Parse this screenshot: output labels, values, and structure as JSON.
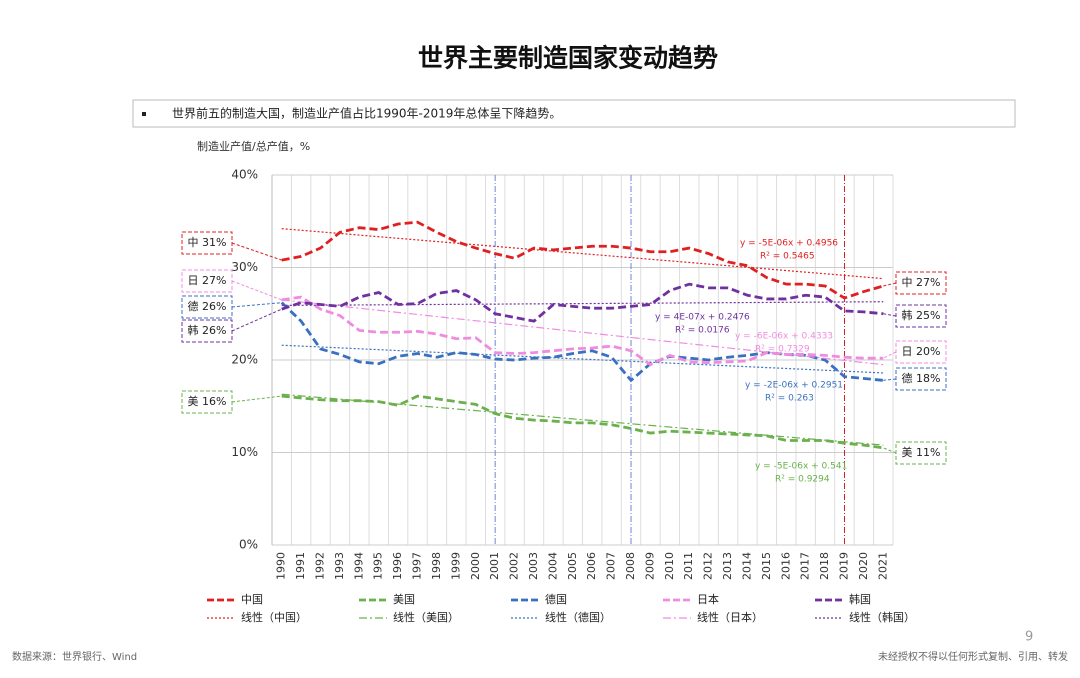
{
  "title": "世界主要制造国家变动趋势",
  "bullet": "世界前五的制造大国，制造业产值占比1990年-2019年总体呈下降趋势。",
  "footer": {
    "source": "数据来源：世界银行、Wind",
    "page": "9",
    "notice": "未经授权不得以任何形式复制、引用、转发"
  },
  "chart_data": {
    "type": "line",
    "y_label": "制造业产值/总产值，%",
    "categories": [
      "1990",
      "1991",
      "1992",
      "1993",
      "1994",
      "1995",
      "1996",
      "1997",
      "1998",
      "1999",
      "2000",
      "2001",
      "2002",
      "2003",
      "2004",
      "2005",
      "2006",
      "2007",
      "2008",
      "2009",
      "2010",
      "2011",
      "2012",
      "2013",
      "2014",
      "2015",
      "2016",
      "2017",
      "2018",
      "2019",
      "2020",
      "2021"
    ],
    "ylim": [
      0,
      40
    ],
    "yticks": [
      {
        "value": 0,
        "label": "0%"
      },
      {
        "value": 10,
        "label": "10%"
      },
      {
        "value": 20,
        "label": "20%"
      },
      {
        "value": 30,
        "label": "30%"
      },
      {
        "value": 40,
        "label": "40%"
      }
    ],
    "grid": true,
    "vlines": [
      {
        "x": "2001",
        "color": "#6f86d8"
      },
      {
        "x": "2008",
        "color": "#6f86d8"
      },
      {
        "x": "2019",
        "color": "#d02020"
      }
    ],
    "series": [
      {
        "name": "中国",
        "color": "#e02020",
        "start_label": "中 31%",
        "end_label": "中 27%",
        "values": [
          30.8,
          31.2,
          32.1,
          33.8,
          34.3,
          34.1,
          34.7,
          34.9,
          33.8,
          32.8,
          32.1,
          31.5,
          31.0,
          32.1,
          31.9,
          32.1,
          32.3,
          32.3,
          32.1,
          31.7,
          31.7,
          32.1,
          31.5,
          30.6,
          30.2,
          28.9,
          28.2,
          28.2,
          28.0,
          26.7,
          27.4,
          28.0
        ],
        "trend": {
          "name": "线性（中国）",
          "values": [
            34.2,
            28.8
          ],
          "equation": "y = -5E-06x + 0.4956",
          "r2": "R² = 0.5465"
        }
      },
      {
        "name": "美国",
        "color": "#6ab04c",
        "start_label": "美 16%",
        "end_label": "美 11%",
        "values": [
          16.1,
          15.9,
          15.7,
          15.6,
          15.6,
          15.5,
          15.1,
          16.1,
          15.8,
          15.5,
          15.2,
          14.2,
          13.7,
          13.5,
          13.4,
          13.2,
          13.2,
          13.0,
          12.6,
          12.1,
          12.3,
          12.2,
          12.1,
          12.0,
          11.9,
          11.8,
          11.3,
          11.3,
          11.3,
          11.0,
          10.8,
          10.5
        ],
        "trend": {
          "name": "线性（美国）",
          "values": [
            16.3,
            10.8
          ],
          "equation": "y = -5E-06x + 0.541",
          "r2": "R² = 0.9294"
        }
      },
      {
        "name": "德国",
        "color": "#3a70c0",
        "start_label": "德 26%",
        "end_label": "德 18%",
        "values": [
          26.2,
          24.2,
          21.2,
          20.6,
          19.8,
          19.6,
          20.4,
          20.7,
          20.3,
          20.8,
          20.6,
          20.1,
          20.0,
          20.2,
          20.3,
          20.7,
          21.0,
          20.3,
          17.8,
          19.6,
          20.4,
          20.2,
          20.0,
          20.3,
          20.5,
          20.8,
          20.6,
          20.5,
          20.0,
          18.2,
          18.0,
          17.8
        ],
        "trend": {
          "name": "线性（德国）",
          "values": [
            21.6,
            18.6
          ],
          "equation": "y = -2E-06x + 0.2951",
          "r2": "R² = 0.263"
        }
      },
      {
        "name": "日本",
        "color": "#f08ce0",
        "start_label": "日 27%",
        "end_label": "日 20%",
        "values": [
          26.5,
          26.8,
          25.5,
          24.8,
          23.2,
          23.0,
          23.0,
          23.1,
          22.8,
          22.3,
          22.4,
          20.8,
          20.7,
          20.8,
          21.0,
          21.2,
          21.3,
          21.5,
          21.0,
          19.5,
          20.5,
          19.8,
          19.7,
          19.8,
          19.9,
          20.8,
          20.6,
          20.6,
          20.5,
          20.3,
          20.2,
          20.2
        ],
        "trend": {
          "name": "线性（日本）",
          "values": [
            26.5,
            19.5
          ],
          "equation": "y = -6E-06x + 0.4333",
          "r2": "R² = 0.7329"
        }
      },
      {
        "name": "韩国",
        "color": "#7030a0",
        "start_label": "韩 26%",
        "end_label": "韩 25%",
        "values": [
          25.5,
          26.2,
          26.0,
          25.8,
          26.8,
          27.3,
          26.0,
          26.1,
          27.2,
          27.5,
          26.5,
          25.0,
          24.6,
          24.2,
          26.0,
          25.8,
          25.6,
          25.6,
          25.8,
          26.0,
          27.5,
          28.2,
          27.8,
          27.8,
          27.0,
          26.6,
          26.6,
          27.0,
          26.8,
          25.3,
          25.2,
          25.0
        ],
        "trend": {
          "name": "线性（韩国）",
          "values": [
            25.9,
            26.3
          ],
          "equation": "y = 4E-07x + 0.2476",
          "r2": "R² = 0.0176"
        }
      }
    ]
  }
}
